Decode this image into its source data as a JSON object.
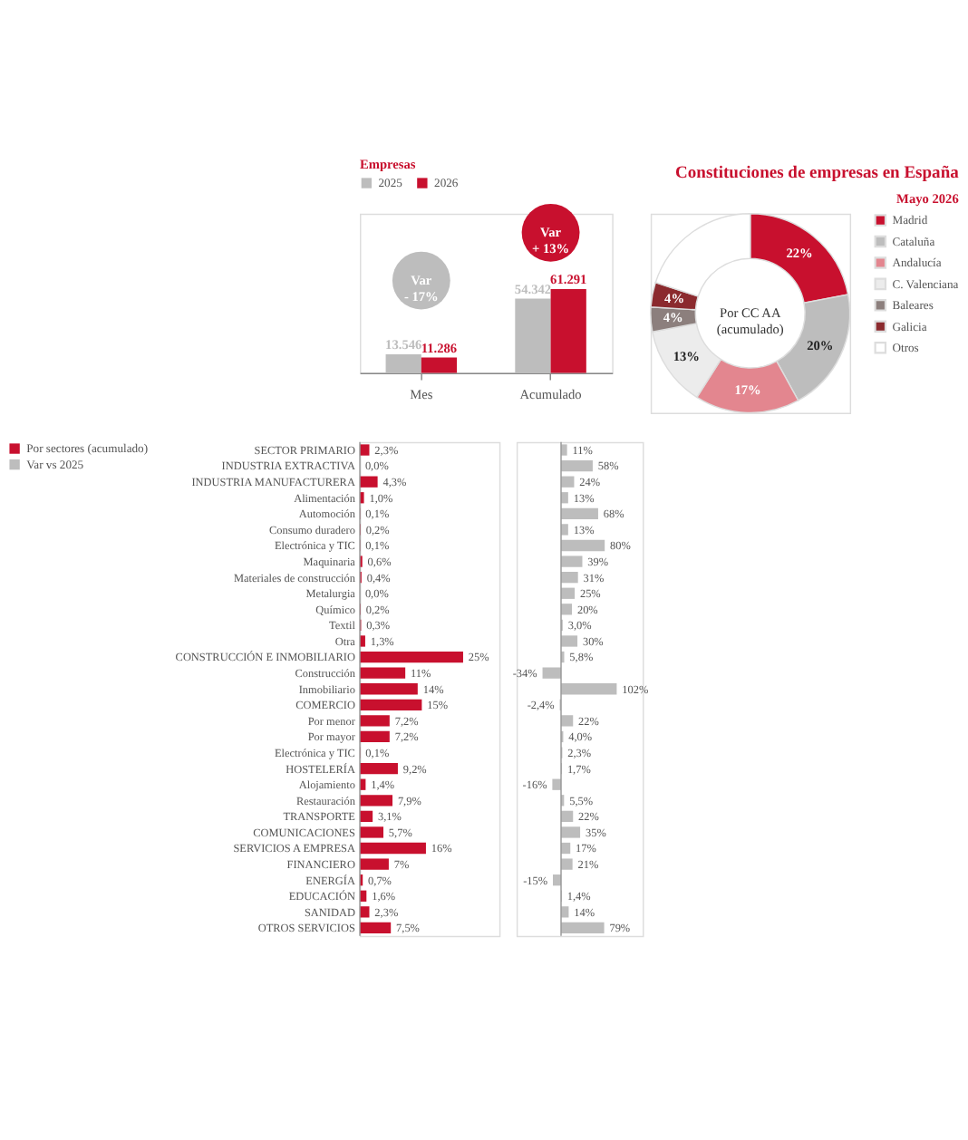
{
  "chart_data": [
    {
      "type": "bar",
      "subtitle": "Empresas",
      "categories": [
        "Mes",
        "Acumulado"
      ],
      "legend": "top left",
      "series": [
        {
          "name": "2025",
          "color": "#bdbdbd",
          "values": [
            13546,
            54342
          ],
          "value_labels": [
            "13.546",
            "54.342"
          ]
        },
        {
          "name": "2026",
          "color": "#c8102e",
          "values": [
            11286,
            61291
          ],
          "value_labels": [
            "11.286",
            "61.291"
          ]
        }
      ],
      "annotations": [
        "Var - 17%",
        "Var + 13%"
      ]
    },
    {
      "type": "donut",
      "title": "Constituciones de empresas en España",
      "subtitle": "Mayo 2026",
      "annotations": [
        "Por CC AA (acumulado)"
      ],
      "legend": "right",
      "categories": [
        "Madrid",
        "Cataluña",
        "Andalucía",
        "C. Valenciana",
        "Baleares",
        "Galicia",
        "Otros"
      ],
      "values": [
        22,
        20,
        17,
        13,
        4,
        4,
        20
      ],
      "value_labels": [
        "22%",
        "20%",
        "17%",
        "13%",
        "4%",
        "4%",
        null
      ],
      "colors": [
        "#c8102e",
        "#bdbdbd",
        "#e3868f",
        "#ececec",
        "#8c7f7d",
        "#8b2a2e",
        "#ffffff"
      ]
    },
    {
      "type": "bar",
      "orientation": "horizontal",
      "legend": "left",
      "categories": [
        "SECTOR PRIMARIO",
        "INDUSTRIA EXTRACTIVA",
        "INDUSTRIA MANUFACTURERA",
        "Alimentación",
        "Automoción",
        "Consumo duradero",
        "Electrónica y TIC",
        "Maquinaria",
        "Materiales de construcción",
        "Metalurgia",
        "Químico",
        "Textil",
        "Otra",
        "CONSTRUCCIÓN E INMOBILIARIO",
        "Construcción",
        "Inmobiliario",
        "COMERCIO",
        "Por menor",
        "Por mayor",
        "Electrónica y TIC",
        "HOSTELERÍA",
        "Alojamiento",
        "Restauración",
        "TRANSPORTE",
        "COMUNICACIONES",
        "SERVICIOS A EMPRESA",
        "FINANCIERO",
        "ENERGÍA",
        "EDUCACIÓN",
        "SANIDAD",
        "OTROS SERVICIOS"
      ],
      "series": [
        {
          "name": "Por sectores (acumulado)",
          "color": "#c8102e",
          "values": [
            2.3,
            0.0,
            4.3,
            1.0,
            0.1,
            0.2,
            0.1,
            0.6,
            0.4,
            0.0,
            0.2,
            0.3,
            1.3,
            25,
            11,
            14,
            15,
            7.2,
            7.2,
            0.1,
            9.2,
            1.4,
            7.9,
            3.1,
            5.7,
            16,
            7,
            0.7,
            1.6,
            2.3,
            7.5
          ],
          "value_labels": [
            "2,3%",
            "0,0%",
            "4,3%",
            "1,0%",
            "0,1%",
            "0,2%",
            "0,1%",
            "0,6%",
            "0,4%",
            "0,0%",
            "0,2%",
            "0,3%",
            "1,3%",
            "25%",
            "11%",
            "14%",
            "15%",
            "7,2%",
            "7,2%",
            "0,1%",
            "9,2%",
            "1,4%",
            "7,9%",
            "3,1%",
            "5,7%",
            "16%",
            "7%",
            "0,7%",
            "1,6%",
            "2,3%",
            "7,5%"
          ]
        }
      ]
    },
    {
      "type": "bar",
      "orientation": "horizontal",
      "legend": "left",
      "tick_labels": false,
      "categories": [
        null,
        null,
        null,
        null,
        null,
        null,
        null,
        null,
        null,
        null,
        null,
        null,
        null,
        null,
        null,
        null,
        null,
        null,
        null,
        null,
        null,
        null,
        null,
        null,
        null,
        null,
        null,
        null,
        null,
        null,
        null
      ],
      "series": [
        {
          "name": "Var vs 2025",
          "color": "#bdbdbd",
          "values": [
            11,
            58,
            24,
            13,
            68,
            13,
            80,
            39,
            31,
            25,
            20,
            3.0,
            30,
            5.8,
            -34,
            102,
            -2.4,
            22,
            4.0,
            2.3,
            1.7,
            -16,
            5.5,
            22,
            35,
            17,
            21,
            -15,
            1.4,
            14,
            79
          ],
          "value_labels": [
            "11%",
            "58%",
            "24%",
            "13%",
            "68%",
            "13%",
            "80%",
            "39%",
            "31%",
            "25%",
            "20%",
            "3,0%",
            "30%",
            "5,8%",
            "-34%",
            "102%",
            "-2,4%",
            "22%",
            "4,0%",
            "2,3%",
            "1,7%",
            "-16%",
            "5,5%",
            "22%",
            "35%",
            "17%",
            "21%",
            "-15%",
            "1,4%",
            "14%",
            "79%"
          ]
        }
      ]
    }
  ]
}
